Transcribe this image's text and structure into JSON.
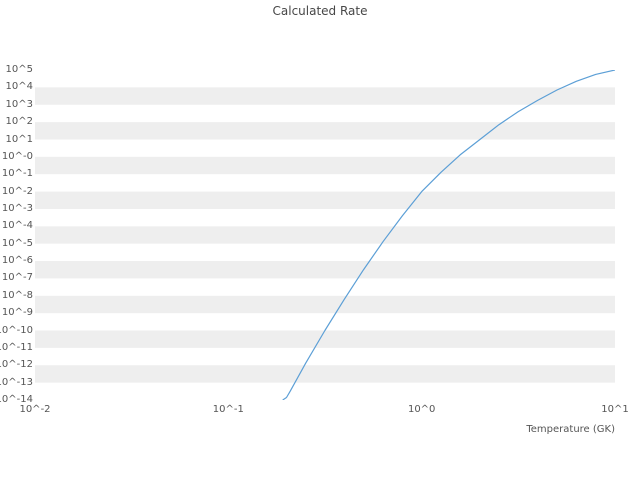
{
  "chart_data": {
    "type": "line",
    "title": "Calculated Rate",
    "xlabel": "Temperature (GK)",
    "ylabel": "",
    "x_scale": "log",
    "y_scale": "log",
    "xlim": [
      0.01,
      10
    ],
    "ylim": [
      1e-14,
      100000.0
    ],
    "grid": "striped-horizontal-bands",
    "legend": "none",
    "x_tick_labels": [
      "10^-2",
      "10^-1",
      "10^0",
      "10^1"
    ],
    "y_tick_labels": [
      "10^5",
      "10^4",
      "10^3",
      "10^2",
      "10^1",
      "10^-0",
      "10^-1",
      "10^-2",
      "10^-3",
      "10^-4",
      "10^-5",
      "10^-6",
      "10^-7",
      "10^-8",
      "10^-9",
      "10^-10",
      "10^-11",
      "10^-12",
      "10^-13",
      "10^-14"
    ],
    "colors": {
      "line": "#5c9fd6",
      "stripe": "#eeeeee",
      "tick_text": "#555555",
      "title_text": "#474747",
      "background": "#ffffff"
    },
    "series": [
      {
        "name": "calculated-rate",
        "points": [
          [
            0.191,
            1e-14
          ],
          [
            0.2,
            1.4e-14
          ],
          [
            0.209,
            3.2e-14
          ],
          [
            0.251,
            1.3e-12
          ],
          [
            0.316,
            1e-10
          ],
          [
            0.398,
            6.3e-09
          ],
          [
            0.501,
            3.2e-07
          ],
          [
            0.631,
            1.3e-05
          ],
          [
            0.794,
            0.0004
          ],
          [
            1.0,
            0.01
          ],
          [
            1.26,
            0.13
          ],
          [
            1.58,
            1.3
          ],
          [
            2.0,
            10.0
          ],
          [
            2.51,
            71.0
          ],
          [
            3.16,
            400.0
          ],
          [
            3.98,
            1780.0
          ],
          [
            5.01,
            7100.0
          ],
          [
            6.31,
            22400.0
          ],
          [
            7.94,
            56000.0
          ],
          [
            10.0,
            100000.0
          ]
        ]
      }
    ]
  }
}
